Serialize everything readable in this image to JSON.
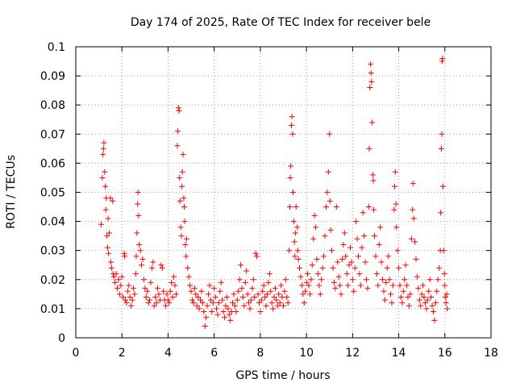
{
  "chart_data": {
    "type": "scatter",
    "title": "Day 174 of 2025, Rate Of TEC Index for receiver bele",
    "xlabel": "GPS time / hours",
    "ylabel": "ROTI / TECUs",
    "xlim": [
      0,
      18
    ],
    "ylim": [
      0,
      0.1
    ],
    "xticks": [
      0,
      2,
      4,
      6,
      8,
      10,
      12,
      14,
      16,
      18
    ],
    "yticks": [
      0,
      0.01,
      0.02,
      0.03,
      0.04,
      0.05,
      0.06,
      0.07,
      0.08,
      0.09,
      0.1
    ],
    "xtick_labels": [
      "0",
      "2",
      "4",
      "6",
      "8",
      "10",
      "12",
      "14",
      "16",
      "18"
    ],
    "ytick_labels": [
      "0",
      "0.01",
      "0.02",
      "0.03",
      "0.04",
      "0.05",
      "0.06",
      "0.07",
      "0.08",
      "0.09",
      "0.1"
    ],
    "grid": true,
    "marker": "plus",
    "marker_color": "#ff0000",
    "points": [
      [
        1.1,
        0.039
      ],
      [
        1.15,
        0.055
      ],
      [
        1.18,
        0.063
      ],
      [
        1.2,
        0.065
      ],
      [
        1.22,
        0.067
      ],
      [
        1.25,
        0.057
      ],
      [
        1.28,
        0.052
      ],
      [
        1.3,
        0.044
      ],
      [
        1.32,
        0.048
      ],
      [
        1.35,
        0.035
      ],
      [
        1.38,
        0.031
      ],
      [
        1.4,
        0.041
      ],
      [
        1.42,
        0.029
      ],
      [
        1.45,
        0.036
      ],
      [
        1.5,
        0.048
      ],
      [
        1.52,
        0.026
      ],
      [
        1.55,
        0.024
      ],
      [
        1.6,
        0.047
      ],
      [
        1.62,
        0.022
      ],
      [
        1.65,
        0.021
      ],
      [
        1.7,
        0.019
      ],
      [
        1.75,
        0.022
      ],
      [
        1.8,
        0.017
      ],
      [
        1.85,
        0.02
      ],
      [
        1.9,
        0.015
      ],
      [
        1.95,
        0.018
      ],
      [
        2.0,
        0.021
      ],
      [
        2.05,
        0.014
      ],
      [
        2.1,
        0.029
      ],
      [
        2.12,
        0.028
      ],
      [
        2.15,
        0.013
      ],
      [
        2.2,
        0.012
      ],
      [
        2.25,
        0.016
      ],
      [
        2.3,
        0.018
      ],
      [
        2.35,
        0.014
      ],
      [
        2.4,
        0.011
      ],
      [
        2.45,
        0.013
      ],
      [
        2.5,
        0.017
      ],
      [
        2.55,
        0.015
      ],
      [
        2.6,
        0.022
      ],
      [
        2.62,
        0.028
      ],
      [
        2.65,
        0.036
      ],
      [
        2.68,
        0.046
      ],
      [
        2.7,
        0.05
      ],
      [
        2.72,
        0.042
      ],
      [
        2.75,
        0.032
      ],
      [
        2.8,
        0.03
      ],
      [
        2.85,
        0.025
      ],
      [
        2.9,
        0.027
      ],
      [
        2.95,
        0.02
      ],
      [
        3.0,
        0.017
      ],
      [
        3.05,
        0.014
      ],
      [
        3.1,
        0.016
      ],
      [
        3.15,
        0.012
      ],
      [
        3.2,
        0.013
      ],
      [
        3.25,
        0.019
      ],
      [
        3.3,
        0.024
      ],
      [
        3.35,
        0.026
      ],
      [
        3.4,
        0.011
      ],
      [
        3.45,
        0.014
      ],
      [
        3.5,
        0.012
      ],
      [
        3.55,
        0.017
      ],
      [
        3.6,
        0.015
      ],
      [
        3.65,
        0.013
      ],
      [
        3.7,
        0.025
      ],
      [
        3.75,
        0.024
      ],
      [
        3.8,
        0.016
      ],
      [
        3.85,
        0.013
      ],
      [
        3.9,
        0.011
      ],
      [
        3.95,
        0.015
      ],
      [
        4.0,
        0.013
      ],
      [
        4.05,
        0.012
      ],
      [
        4.1,
        0.016
      ],
      [
        4.15,
        0.019
      ],
      [
        4.2,
        0.014
      ],
      [
        4.25,
        0.021
      ],
      [
        4.3,
        0.018
      ],
      [
        4.35,
        0.015
      ],
      [
        4.4,
        0.066
      ],
      [
        4.42,
        0.071
      ],
      [
        4.45,
        0.079
      ],
      [
        4.48,
        0.078
      ],
      [
        4.5,
        0.055
      ],
      [
        4.52,
        0.047
      ],
      [
        4.55,
        0.038
      ],
      [
        4.58,
        0.035
      ],
      [
        4.6,
        0.052
      ],
      [
        4.62,
        0.057
      ],
      [
        4.65,
        0.063
      ],
      [
        4.68,
        0.048
      ],
      [
        4.7,
        0.045
      ],
      [
        4.72,
        0.04
      ],
      [
        4.75,
        0.032
      ],
      [
        4.78,
        0.028
      ],
      [
        4.8,
        0.034
      ],
      [
        4.85,
        0.024
      ],
      [
        4.9,
        0.021
      ],
      [
        4.95,
        0.018
      ],
      [
        5.0,
        0.016
      ],
      [
        5.05,
        0.013
      ],
      [
        5.1,
        0.012
      ],
      [
        5.15,
        0.017
      ],
      [
        5.2,
        0.015
      ],
      [
        5.25,
        0.011
      ],
      [
        5.3,
        0.014
      ],
      [
        5.35,
        0.01
      ],
      [
        5.4,
        0.013
      ],
      [
        5.45,
        0.016
      ],
      [
        5.5,
        0.012
      ],
      [
        5.55,
        0.009
      ],
      [
        5.6,
        0.004
      ],
      [
        5.65,
        0.007
      ],
      [
        5.7,
        0.011
      ],
      [
        5.75,
        0.015
      ],
      [
        5.8,
        0.018
      ],
      [
        5.85,
        0.013
      ],
      [
        5.9,
        0.009
      ],
      [
        5.95,
        0.012
      ],
      [
        6.0,
        0.017
      ],
      [
        6.05,
        0.014
      ],
      [
        6.1,
        0.01
      ],
      [
        6.15,
        0.008
      ],
      [
        6.2,
        0.012
      ],
      [
        6.25,
        0.016
      ],
      [
        6.3,
        0.019
      ],
      [
        6.35,
        0.013
      ],
      [
        6.4,
        0.009
      ],
      [
        6.45,
        0.007
      ],
      [
        6.5,
        0.011
      ],
      [
        6.55,
        0.014
      ],
      [
        6.6,
        0.01
      ],
      [
        6.65,
        0.008
      ],
      [
        6.7,
        0.006
      ],
      [
        6.75,
        0.009
      ],
      [
        6.8,
        0.012
      ],
      [
        6.85,
        0.015
      ],
      [
        6.9,
        0.011
      ],
      [
        6.95,
        0.009
      ],
      [
        7.0,
        0.013
      ],
      [
        7.05,
        0.016
      ],
      [
        7.1,
        0.02
      ],
      [
        7.15,
        0.025
      ],
      [
        7.2,
        0.017
      ],
      [
        7.25,
        0.014
      ],
      [
        7.3,
        0.011
      ],
      [
        7.35,
        0.019
      ],
      [
        7.4,
        0.023
      ],
      [
        7.45,
        0.015
      ],
      [
        7.5,
        0.012
      ],
      [
        7.55,
        0.01
      ],
      [
        7.6,
        0.013
      ],
      [
        7.65,
        0.017
      ],
      [
        7.7,
        0.02
      ],
      [
        7.75,
        0.014
      ],
      [
        7.8,
        0.029
      ],
      [
        7.85,
        0.028
      ],
      [
        7.9,
        0.015
      ],
      [
        7.95,
        0.012
      ],
      [
        8.0,
        0.009
      ],
      [
        8.05,
        0.013
      ],
      [
        8.1,
        0.016
      ],
      [
        8.15,
        0.018
      ],
      [
        8.2,
        0.014
      ],
      [
        8.25,
        0.011
      ],
      [
        8.3,
        0.015
      ],
      [
        8.35,
        0.019
      ],
      [
        8.4,
        0.022
      ],
      [
        8.45,
        0.016
      ],
      [
        8.5,
        0.012
      ],
      [
        8.55,
        0.01
      ],
      [
        8.6,
        0.014
      ],
      [
        8.65,
        0.017
      ],
      [
        8.7,
        0.013
      ],
      [
        8.75,
        0.011
      ],
      [
        8.8,
        0.015
      ],
      [
        8.85,
        0.012
      ],
      [
        8.9,
        0.018
      ],
      [
        8.95,
        0.014
      ],
      [
        9.0,
        0.011
      ],
      [
        9.05,
        0.016
      ],
      [
        9.1,
        0.02
      ],
      [
        9.15,
        0.014
      ],
      [
        9.2,
        0.012
      ],
      [
        9.25,
        0.03
      ],
      [
        9.28,
        0.045
      ],
      [
        9.3,
        0.055
      ],
      [
        9.32,
        0.059
      ],
      [
        9.35,
        0.073
      ],
      [
        9.37,
        0.076
      ],
      [
        9.4,
        0.07
      ],
      [
        9.42,
        0.05
      ],
      [
        9.45,
        0.04
      ],
      [
        9.48,
        0.033
      ],
      [
        9.5,
        0.028
      ],
      [
        9.52,
        0.036
      ],
      [
        9.55,
        0.045
      ],
      [
        9.6,
        0.038
      ],
      [
        9.62,
        0.03
      ],
      [
        9.65,
        0.027
      ],
      [
        9.7,
        0.024
      ],
      [
        9.75,
        0.021
      ],
      [
        9.8,
        0.018
      ],
      [
        9.85,
        0.015
      ],
      [
        9.9,
        0.012
      ],
      [
        9.95,
        0.016
      ],
      [
        10.0,
        0.019
      ],
      [
        10.05,
        0.022
      ],
      [
        10.1,
        0.018
      ],
      [
        10.15,
        0.015
      ],
      [
        10.2,
        0.02
      ],
      [
        10.25,
        0.025
      ],
      [
        10.3,
        0.034
      ],
      [
        10.35,
        0.042
      ],
      [
        10.4,
        0.038
      ],
      [
        10.45,
        0.027
      ],
      [
        10.5,
        0.022
      ],
      [
        10.55,
        0.018
      ],
      [
        10.6,
        0.015
      ],
      [
        10.65,
        0.02
      ],
      [
        10.7,
        0.024
      ],
      [
        10.75,
        0.028
      ],
      [
        10.8,
        0.035
      ],
      [
        10.85,
        0.045
      ],
      [
        10.9,
        0.05
      ],
      [
        10.95,
        0.057
      ],
      [
        11.0,
        0.07
      ],
      [
        11.02,
        0.047
      ],
      [
        11.05,
        0.037
      ],
      [
        11.1,
        0.03
      ],
      [
        11.15,
        0.024
      ],
      [
        11.2,
        0.019
      ],
      [
        11.25,
        0.017
      ],
      [
        11.3,
        0.045
      ],
      [
        11.35,
        0.026
      ],
      [
        11.4,
        0.021
      ],
      [
        11.45,
        0.018
      ],
      [
        11.5,
        0.015
      ],
      [
        11.55,
        0.027
      ],
      [
        11.6,
        0.032
      ],
      [
        11.65,
        0.036
      ],
      [
        11.7,
        0.028
      ],
      [
        11.75,
        0.022
      ],
      [
        11.8,
        0.018
      ],
      [
        11.85,
        0.025
      ],
      [
        11.9,
        0.031
      ],
      [
        11.95,
        0.026
      ],
      [
        12.0,
        0.02
      ],
      [
        12.05,
        0.016
      ],
      [
        12.1,
        0.024
      ],
      [
        12.15,
        0.04
      ],
      [
        12.2,
        0.034
      ],
      [
        12.25,
        0.028
      ],
      [
        12.3,
        0.022
      ],
      [
        12.35,
        0.018
      ],
      [
        12.4,
        0.031
      ],
      [
        12.45,
        0.043
      ],
      [
        12.5,
        0.035
      ],
      [
        12.55,
        0.026
      ],
      [
        12.6,
        0.02
      ],
      [
        12.65,
        0.017
      ],
      [
        12.7,
        0.045
      ],
      [
        12.72,
        0.065
      ],
      [
        12.75,
        0.086
      ],
      [
        12.78,
        0.094
      ],
      [
        12.8,
        0.091
      ],
      [
        12.82,
        0.088
      ],
      [
        12.85,
        0.074
      ],
      [
        12.88,
        0.056
      ],
      [
        12.9,
        0.054
      ],
      [
        12.92,
        0.044
      ],
      [
        12.95,
        0.035
      ],
      [
        13.0,
        0.028
      ],
      [
        13.05,
        0.022
      ],
      [
        13.1,
        0.018
      ],
      [
        13.15,
        0.032
      ],
      [
        13.2,
        0.038
      ],
      [
        13.25,
        0.026
      ],
      [
        13.3,
        0.02
      ],
      [
        13.35,
        0.016
      ],
      [
        13.4,
        0.013
      ],
      [
        13.45,
        0.019
      ],
      [
        13.5,
        0.024
      ],
      [
        13.55,
        0.028
      ],
      [
        13.6,
        0.02
      ],
      [
        13.65,
        0.015
      ],
      [
        13.7,
        0.012
      ],
      [
        13.75,
        0.018
      ],
      [
        13.8,
        0.044
      ],
      [
        13.82,
        0.052
      ],
      [
        13.85,
        0.057
      ],
      [
        13.88,
        0.046
      ],
      [
        13.9,
        0.038
      ],
      [
        13.95,
        0.03
      ],
      [
        14.0,
        0.024
      ],
      [
        14.05,
        0.018
      ],
      [
        14.1,
        0.014
      ],
      [
        14.15,
        0.012
      ],
      [
        14.2,
        0.016
      ],
      [
        14.25,
        0.02
      ],
      [
        14.3,
        0.025
      ],
      [
        14.35,
        0.018
      ],
      [
        14.4,
        0.014
      ],
      [
        14.45,
        0.011
      ],
      [
        14.5,
        0.015
      ],
      [
        14.55,
        0.034
      ],
      [
        14.6,
        0.044
      ],
      [
        14.62,
        0.053
      ],
      [
        14.65,
        0.041
      ],
      [
        14.7,
        0.033
      ],
      [
        14.75,
        0.027
      ],
      [
        14.8,
        0.021
      ],
      [
        14.85,
        0.017
      ],
      [
        14.9,
        0.013
      ],
      [
        14.95,
        0.011
      ],
      [
        15.0,
        0.015
      ],
      [
        15.05,
        0.018
      ],
      [
        15.1,
        0.014
      ],
      [
        15.15,
        0.012
      ],
      [
        15.2,
        0.01
      ],
      [
        15.25,
        0.013
      ],
      [
        15.3,
        0.016
      ],
      [
        15.35,
        0.02
      ],
      [
        15.4,
        0.014
      ],
      [
        15.45,
        0.011
      ],
      [
        15.5,
        0.009
      ],
      [
        15.55,
        0.006
      ],
      [
        15.6,
        0.012
      ],
      [
        15.65,
        0.016
      ],
      [
        15.7,
        0.02
      ],
      [
        15.75,
        0.024
      ],
      [
        15.8,
        0.03
      ],
      [
        15.82,
        0.043
      ],
      [
        15.85,
        0.065
      ],
      [
        15.87,
        0.07
      ],
      [
        15.88,
        0.095
      ],
      [
        15.9,
        0.096
      ],
      [
        15.92,
        0.052
      ],
      [
        15.95,
        0.03
      ],
      [
        15.98,
        0.022
      ],
      [
        16.0,
        0.018
      ],
      [
        16.02,
        0.014
      ],
      [
        16.05,
        0.012
      ],
      [
        16.08,
        0.015
      ],
      [
        16.1,
        0.01
      ]
    ]
  }
}
